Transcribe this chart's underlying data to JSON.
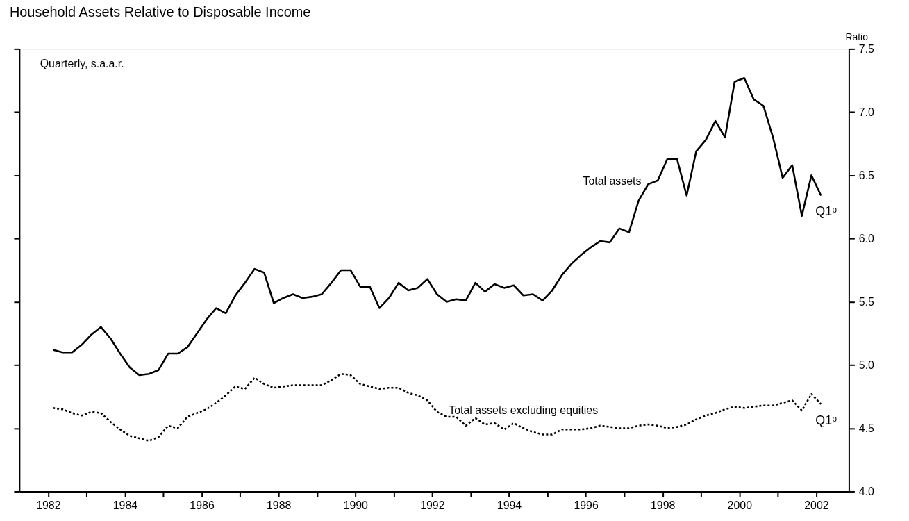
{
  "chart_data": {
    "type": "line",
    "title": "Household Assets Relative to Disposable Income",
    "ylabel": "Ratio",
    "x": [
      1982.125,
      1982.375,
      1982.625,
      1982.875,
      1983.125,
      1983.375,
      1983.625,
      1983.875,
      1984.125,
      1984.375,
      1984.625,
      1984.875,
      1985.125,
      1985.375,
      1985.625,
      1985.875,
      1986.125,
      1986.375,
      1986.625,
      1986.875,
      1987.125,
      1987.375,
      1987.625,
      1987.875,
      1988.125,
      1988.375,
      1988.625,
      1988.875,
      1989.125,
      1989.375,
      1989.625,
      1989.875,
      1990.125,
      1990.375,
      1990.625,
      1990.875,
      1991.125,
      1991.375,
      1991.625,
      1991.875,
      1992.125,
      1992.375,
      1992.625,
      1992.875,
      1993.125,
      1993.375,
      1993.625,
      1993.875,
      1994.125,
      1994.375,
      1994.625,
      1994.875,
      1995.125,
      1995.375,
      1995.625,
      1995.875,
      1996.125,
      1996.375,
      1996.625,
      1996.875,
      1997.125,
      1997.375,
      1997.625,
      1997.875,
      1998.125,
      1998.375,
      1998.625,
      1998.875,
      1999.125,
      1999.375,
      1999.625,
      1999.875,
      2000.125,
      2000.375,
      2000.625,
      2000.875,
      2001.125,
      2001.375,
      2001.625,
      2001.875,
      2002.125
    ],
    "xlim": [
      1981.25,
      2002.85
    ],
    "xticks": [
      1982,
      {
        "value": 1983,
        "label": null
      },
      1984,
      {
        "value": 1985,
        "label": null
      },
      1986,
      {
        "value": 1987,
        "label": null
      },
      1988,
      {
        "value": 1989,
        "label": null
      },
      1990,
      {
        "value": 1991,
        "label": null
      },
      1992,
      {
        "value": 1993,
        "label": null
      },
      1994,
      {
        "value": 1995,
        "label": null
      },
      1996,
      {
        "value": 1997,
        "label": null
      },
      1998,
      {
        "value": 1999,
        "label": null
      },
      2000,
      {
        "value": 2001,
        "label": null
      },
      2002
    ],
    "ylim": [
      4.0,
      7.5
    ],
    "yticks": [
      {
        "value": 4.0,
        "label": "4.0"
      },
      {
        "value": 4.5,
        "label": "4.5"
      },
      {
        "value": 5.0,
        "label": "5.0"
      },
      {
        "value": 5.5,
        "label": "5.5"
      },
      {
        "value": 6.0,
        "label": "6.0"
      },
      {
        "value": 6.5,
        "label": "6.5"
      },
      {
        "value": 7.0,
        "label": "7.0"
      },
      {
        "value": 7.5,
        "label": "7.5"
      }
    ],
    "series": [
      {
        "name": "Total assets",
        "color": "#000000",
        "line_style": "solid",
        "values": [
          5.12,
          5.1,
          5.1,
          5.16,
          5.24,
          5.3,
          5.21,
          5.09,
          4.98,
          4.92,
          4.93,
          4.96,
          5.09,
          5.09,
          5.14,
          5.25,
          5.36,
          5.45,
          5.41,
          5.55,
          5.65,
          5.76,
          5.73,
          5.49,
          5.53,
          5.56,
          5.53,
          5.54,
          5.56,
          5.65,
          5.75,
          5.75,
          5.62,
          5.62,
          5.45,
          5.53,
          5.65,
          5.59,
          5.61,
          5.68,
          5.56,
          5.5,
          5.52,
          5.51,
          5.65,
          5.58,
          5.64,
          5.61,
          5.63,
          5.55,
          5.56,
          5.51,
          5.59,
          5.71,
          5.8,
          5.87,
          5.93,
          5.98,
          5.97,
          6.08,
          6.05,
          6.3,
          6.43,
          6.46,
          6.63,
          6.63,
          6.34,
          6.69,
          6.78,
          6.93,
          6.8,
          7.24,
          7.27,
          7.1,
          7.05,
          6.8,
          6.48,
          6.58,
          6.18,
          6.5,
          6.34
        ]
      },
      {
        "name": "Total assets excluding equities",
        "color": "#000000",
        "line_style": "dotted",
        "values": [
          4.66,
          4.65,
          4.62,
          4.6,
          4.63,
          4.62,
          4.55,
          4.49,
          4.44,
          4.42,
          4.4,
          4.43,
          4.52,
          4.5,
          4.59,
          4.62,
          4.65,
          4.7,
          4.76,
          4.83,
          4.81,
          4.9,
          4.85,
          4.82,
          4.83,
          4.84,
          4.84,
          4.84,
          4.84,
          4.88,
          4.93,
          4.92,
          4.85,
          4.83,
          4.81,
          4.82,
          4.82,
          4.78,
          4.76,
          4.72,
          4.63,
          4.59,
          4.59,
          4.52,
          4.58,
          4.53,
          4.54,
          4.49,
          4.54,
          4.5,
          4.47,
          4.45,
          4.45,
          4.49,
          4.49,
          4.49,
          4.5,
          4.52,
          4.51,
          4.5,
          4.5,
          4.52,
          4.53,
          4.52,
          4.5,
          4.51,
          4.53,
          4.57,
          4.6,
          4.62,
          4.65,
          4.67,
          4.66,
          4.67,
          4.68,
          4.68,
          4.7,
          4.72,
          4.64,
          4.77,
          4.69
        ]
      }
    ],
    "annotations": [
      "Quarterly, s.a.a.r.",
      {
        "text": "Q1ᵖ",
        "x": 2002.125,
        "y": 6.34
      },
      {
        "text": "Q1ᵖ",
        "x": 2002.125,
        "y": 4.69
      }
    ],
    "grid": false,
    "legend": false,
    "marker": "none"
  }
}
